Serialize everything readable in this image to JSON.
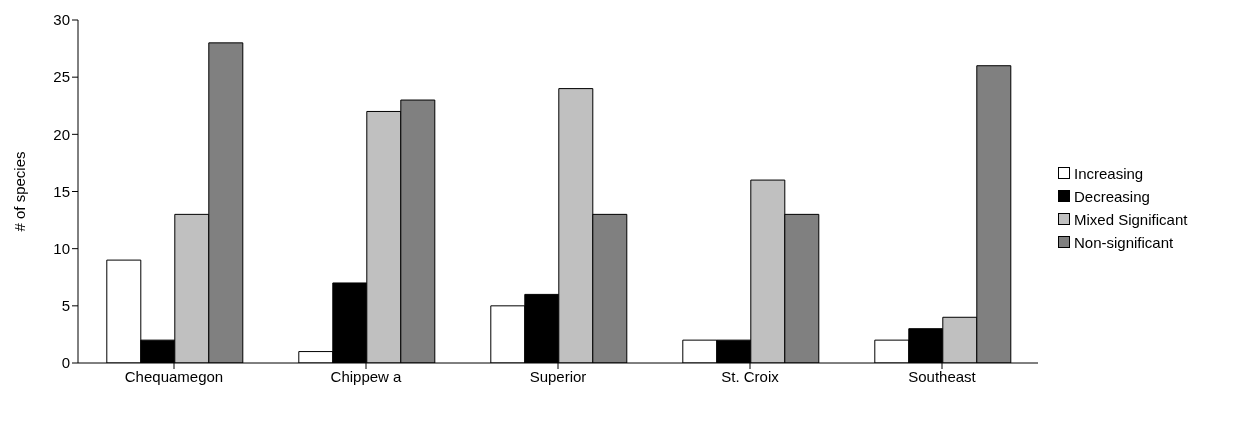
{
  "chart_data": {
    "type": "bar",
    "ylabel": "# of species",
    "categories": [
      "Chequamegon",
      "Chippew a",
      "Superior",
      "St. Croix",
      "Southeast"
    ],
    "series": [
      {
        "name": "Increasing",
        "color": "#ffffff",
        "values": [
          9,
          1,
          5,
          2,
          2
        ]
      },
      {
        "name": "Decreasing",
        "color": "#000000",
        "values": [
          2,
          7,
          6,
          2,
          3
        ]
      },
      {
        "name": "Mixed Significant",
        "color": "#c0c0c0",
        "values": [
          13,
          22,
          24,
          16,
          4
        ]
      },
      {
        "name": "Non-significant",
        "color": "#808080",
        "values": [
          28,
          23,
          13,
          13,
          26
        ]
      }
    ],
    "ylim": [
      0,
      30
    ],
    "yticks": [
      0,
      5,
      10,
      15,
      20,
      25,
      30
    ],
    "grid": false,
    "legend": "right"
  }
}
